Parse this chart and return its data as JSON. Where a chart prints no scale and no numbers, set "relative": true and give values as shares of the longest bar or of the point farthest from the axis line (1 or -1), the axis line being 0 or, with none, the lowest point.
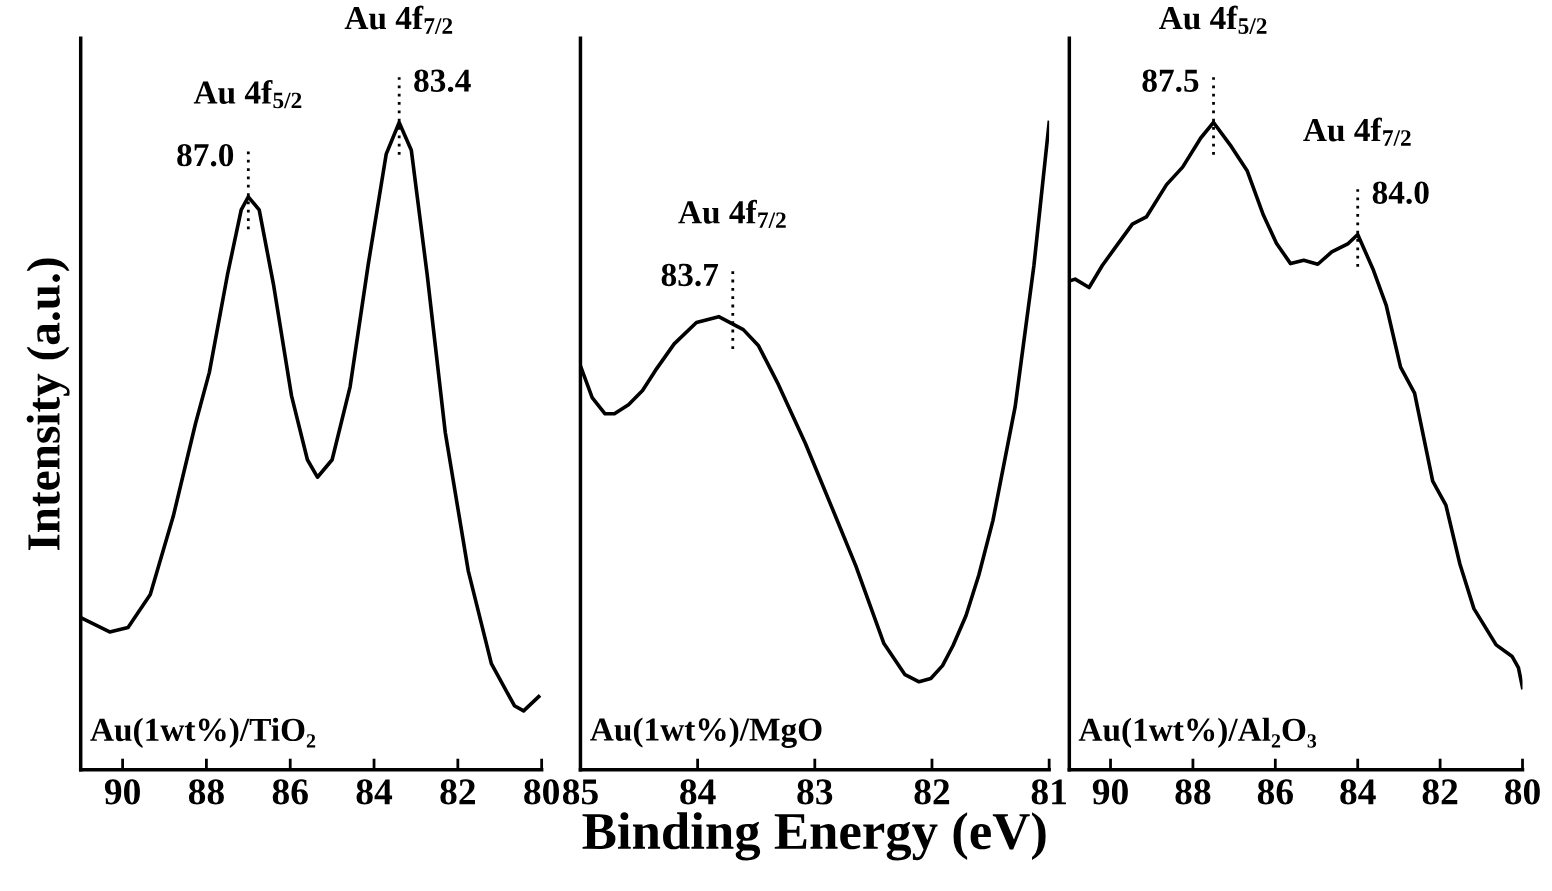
{
  "chart_data": [
    {
      "type": "line",
      "relative": true,
      "ylabel": "Intensity (a.u.)",
      "xlim": [
        91.0,
        80.0
      ],
      "xticks": [
        90,
        88,
        86,
        84,
        82,
        80
      ],
      "tick_labels": "x",
      "legend": false,
      "grid": false,
      "series": [
        {
          "color": "#000000",
          "x": [
            91.0,
            90.31,
            89.87,
            89.34,
            88.79,
            88.26,
            87.93,
            87.5,
            87.17,
            87.0,
            86.74,
            86.4,
            85.97,
            85.59,
            85.35,
            85.0,
            84.57,
            84.14,
            83.71,
            83.4,
            83.11,
            82.73,
            82.3,
            81.75,
            81.2,
            80.65,
            80.43,
            80.07
          ],
          "values": [
            0.235,
            0.213,
            0.22,
            0.271,
            0.392,
            0.535,
            0.614,
            0.764,
            0.865,
            0.885,
            0.865,
            0.75,
            0.578,
            0.479,
            0.452,
            0.479,
            0.592,
            0.78,
            0.951,
            1.0,
            0.957,
            0.764,
            0.521,
            0.307,
            0.164,
            0.099,
            0.091,
            0.113
          ]
        }
      ],
      "annotations": [
        {
          "text": "Au 4f$_{5/2}$",
          "x": 87.0,
          "y": 0.885
        },
        {
          "text": "87.0",
          "x": 87.0,
          "y": 0.885
        },
        {
          "text": "Au 4f$_{7/2}$",
          "x": 83.4,
          "y": 1.0
        },
        {
          "text": "83.4",
          "x": 83.4,
          "y": 1.0
        },
        "Au(1wt%)/TiO₂"
      ]
    },
    {
      "type": "line",
      "relative": true,
      "xlabel": "Binding Energy (eV)",
      "xlim": [
        85,
        81
      ],
      "xticks": [
        85,
        84,
        83,
        82,
        81
      ],
      "tick_labels": "x",
      "legend": false,
      "grid": false,
      "series": [
        {
          "color": "#000000",
          "x": [
            85.0,
            84.9,
            84.79,
            84.71,
            84.59,
            84.47,
            84.36,
            84.2,
            84.01,
            83.82,
            83.61,
            83.48,
            83.31,
            83.08,
            82.84,
            82.65,
            82.41,
            82.23,
            82.11,
            82.01,
            81.91,
            81.82,
            81.71,
            81.6,
            81.48,
            81.29,
            81.13,
            81.0
          ],
          "values": [
            0.624,
            0.575,
            0.55,
            0.55,
            0.564,
            0.586,
            0.617,
            0.658,
            0.691,
            0.7,
            0.68,
            0.655,
            0.595,
            0.504,
            0.399,
            0.315,
            0.195,
            0.147,
            0.136,
            0.141,
            0.161,
            0.192,
            0.238,
            0.301,
            0.385,
            0.561,
            0.779,
            1.0
          ]
        }
      ],
      "annotations": [
        {
          "text": "Au 4f$_{7/2}$",
          "x": 83.7,
          "y": 0.7
        },
        {
          "text": "83.7",
          "x": 83.7,
          "y": 0.7
        },
        "Au(1wt%)/MgO"
      ]
    },
    {
      "type": "line",
      "relative": true,
      "xlim": [
        91.0,
        80.0
      ],
      "xticks": [
        90,
        88,
        86,
        84,
        82,
        80
      ],
      "tick_labels": "x",
      "legend": false,
      "grid": false,
      "series": [
        {
          "color": "#000000",
          "x": [
            91.0,
            90.86,
            90.52,
            90.2,
            89.86,
            89.47,
            89.13,
            88.64,
            88.25,
            87.81,
            87.5,
            87.07,
            86.68,
            86.29,
            85.97,
            85.63,
            85.31,
            84.97,
            84.63,
            84.23,
            84.0,
            83.62,
            83.31,
            82.96,
            82.62,
            82.18,
            81.86,
            81.52,
            81.18,
            80.64,
            80.25,
            80.1,
            80.0
          ],
          "values": [
            0.755,
            0.758,
            0.745,
            0.779,
            0.809,
            0.843,
            0.854,
            0.904,
            0.931,
            0.976,
            1.0,
            0.963,
            0.925,
            0.857,
            0.813,
            0.782,
            0.787,
            0.781,
            0.8,
            0.813,
            0.827,
            0.772,
            0.718,
            0.622,
            0.582,
            0.446,
            0.409,
            0.318,
            0.249,
            0.193,
            0.175,
            0.158,
            0.127
          ]
        }
      ],
      "annotations": [
        {
          "text": "Au 4f$_{5/2}$",
          "x": 87.5,
          "y": 1.0
        },
        {
          "text": "87.5",
          "x": 87.5,
          "y": 1.0
        },
        {
          "text": "Au 4f$_{7/2}$",
          "x": 84.0,
          "y": 0.827
        },
        {
          "text": "84.0",
          "x": 84.0,
          "y": 0.827
        },
        "Au(1wt%)/Al₂O₃"
      ]
    }
  ]
}
